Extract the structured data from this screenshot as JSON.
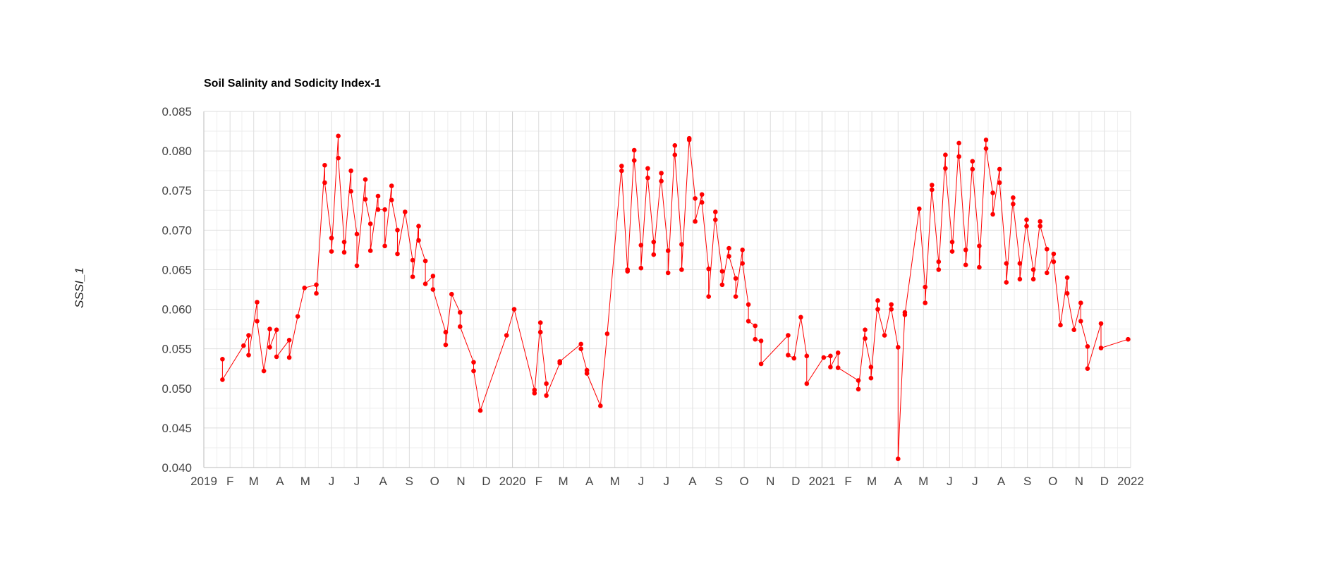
{
  "chart_data": {
    "type": "line",
    "title": "Soil Salinity and Sodicity Index-1",
    "xlabel": "",
    "ylabel": "SSSI_1",
    "ylim": [
      0.04,
      0.085
    ],
    "xlim": [
      "2019-01-01",
      "2022-01-01"
    ],
    "y_ticks": [
      "0.040",
      "0.045",
      "0.050",
      "0.055",
      "0.060",
      "0.065",
      "0.070",
      "0.075",
      "0.080",
      "0.085"
    ],
    "x_ticks": [
      {
        "date": "2019-01-01",
        "label": "2019",
        "year": true
      },
      {
        "date": "2019-02-01",
        "label": "F"
      },
      {
        "date": "2019-03-01",
        "label": "M"
      },
      {
        "date": "2019-04-01",
        "label": "A"
      },
      {
        "date": "2019-05-01",
        "label": "M"
      },
      {
        "date": "2019-06-01",
        "label": "J"
      },
      {
        "date": "2019-07-01",
        "label": "J"
      },
      {
        "date": "2019-08-01",
        "label": "A"
      },
      {
        "date": "2019-09-01",
        "label": "S"
      },
      {
        "date": "2019-10-01",
        "label": "O"
      },
      {
        "date": "2019-11-01",
        "label": "N"
      },
      {
        "date": "2019-12-01",
        "label": "D"
      },
      {
        "date": "2020-01-01",
        "label": "2020",
        "year": true
      },
      {
        "date": "2020-02-01",
        "label": "F"
      },
      {
        "date": "2020-03-01",
        "label": "M"
      },
      {
        "date": "2020-04-01",
        "label": "A"
      },
      {
        "date": "2020-05-01",
        "label": "M"
      },
      {
        "date": "2020-06-01",
        "label": "J"
      },
      {
        "date": "2020-07-01",
        "label": "J"
      },
      {
        "date": "2020-08-01",
        "label": "A"
      },
      {
        "date": "2020-09-01",
        "label": "S"
      },
      {
        "date": "2020-10-01",
        "label": "O"
      },
      {
        "date": "2020-11-01",
        "label": "N"
      },
      {
        "date": "2020-12-01",
        "label": "D"
      },
      {
        "date": "2021-01-01",
        "label": "2021",
        "year": true
      },
      {
        "date": "2021-02-01",
        "label": "F"
      },
      {
        "date": "2021-03-01",
        "label": "M"
      },
      {
        "date": "2021-04-01",
        "label": "A"
      },
      {
        "date": "2021-05-01",
        "label": "M"
      },
      {
        "date": "2021-06-01",
        "label": "J"
      },
      {
        "date": "2021-07-01",
        "label": "J"
      },
      {
        "date": "2021-08-01",
        "label": "A"
      },
      {
        "date": "2021-09-01",
        "label": "S"
      },
      {
        "date": "2021-10-01",
        "label": "O"
      },
      {
        "date": "2021-11-01",
        "label": "N"
      },
      {
        "date": "2021-12-01",
        "label": "D"
      },
      {
        "date": "2022-01-01",
        "label": "2022",
        "year": true
      }
    ],
    "grid": true,
    "legend": "none",
    "colors": {
      "series": "#ff0000",
      "grid": "#dddddd",
      "minor_grid": "#eeeeee",
      "year_grid": "#cccccc"
    },
    "series": [
      {
        "points": [
          [
            "2019-01-23",
            0.0537
          ],
          [
            "2019-01-23",
            0.0511
          ],
          [
            "2019-02-17",
            0.0554
          ],
          [
            "2019-02-23",
            0.0567
          ],
          [
            "2019-02-23",
            0.0542
          ],
          [
            "2019-03-05",
            0.0609
          ],
          [
            "2019-03-05",
            0.0585
          ],
          [
            "2019-03-13",
            0.0522
          ],
          [
            "2019-03-20",
            0.0575
          ],
          [
            "2019-03-20",
            0.0552
          ],
          [
            "2019-03-28",
            0.0574
          ],
          [
            "2019-03-28",
            0.054
          ],
          [
            "2019-04-12",
            0.0561
          ],
          [
            "2019-04-12",
            0.0539
          ],
          [
            "2019-04-22",
            0.0591
          ],
          [
            "2019-04-30",
            0.0627
          ],
          [
            "2019-05-14",
            0.0631
          ],
          [
            "2019-05-14",
            0.062
          ],
          [
            "2019-05-24",
            0.0782
          ],
          [
            "2019-05-24",
            0.076
          ],
          [
            "2019-06-01",
            0.069
          ],
          [
            "2019-06-01",
            0.0673
          ],
          [
            "2019-06-09",
            0.0819
          ],
          [
            "2019-06-09",
            0.0791
          ],
          [
            "2019-06-16",
            0.0685
          ],
          [
            "2019-06-16",
            0.0672
          ],
          [
            "2019-06-24",
            0.0775
          ],
          [
            "2019-06-24",
            0.0749
          ],
          [
            "2019-07-01",
            0.0695
          ],
          [
            "2019-07-01",
            0.0655
          ],
          [
            "2019-07-11",
            0.0764
          ],
          [
            "2019-07-11",
            0.0739
          ],
          [
            "2019-07-17",
            0.0708
          ],
          [
            "2019-07-17",
            0.0674
          ],
          [
            "2019-07-26",
            0.0743
          ],
          [
            "2019-07-26",
            0.0726
          ],
          [
            "2019-08-03",
            0.0726
          ],
          [
            "2019-08-03",
            0.068
          ],
          [
            "2019-08-11",
            0.0756
          ],
          [
            "2019-08-11",
            0.0738
          ],
          [
            "2019-08-18",
            0.07
          ],
          [
            "2019-08-18",
            0.067
          ],
          [
            "2019-08-27",
            0.0723
          ],
          [
            "2019-09-05",
            0.0662
          ],
          [
            "2019-09-05",
            0.0641
          ],
          [
            "2019-09-12",
            0.0705
          ],
          [
            "2019-09-12",
            0.0687
          ],
          [
            "2019-09-20",
            0.0661
          ],
          [
            "2019-09-20",
            0.0632
          ],
          [
            "2019-09-29",
            0.0642
          ],
          [
            "2019-09-29",
            0.0625
          ],
          [
            "2019-10-14",
            0.0571
          ],
          [
            "2019-10-14",
            0.0555
          ],
          [
            "2019-10-21",
            0.0619
          ],
          [
            "2019-10-31",
            0.0596
          ],
          [
            "2019-10-31",
            0.0578
          ],
          [
            "2019-11-16",
            0.0533
          ],
          [
            "2019-11-16",
            0.0522
          ],
          [
            "2019-11-24",
            0.0472
          ],
          [
            "2019-12-25",
            0.0567
          ],
          [
            "2020-01-03",
            0.06
          ],
          [
            "2020-01-27",
            0.0498
          ],
          [
            "2020-01-27",
            0.0494
          ],
          [
            "2020-02-03",
            0.0583
          ],
          [
            "2020-02-03",
            0.0571
          ],
          [
            "2020-02-10",
            0.0506
          ],
          [
            "2020-02-10",
            0.0491
          ],
          [
            "2020-02-26",
            0.0532
          ],
          [
            "2020-02-26",
            0.0534
          ],
          [
            "2020-03-22",
            0.0556
          ],
          [
            "2020-03-22",
            0.055
          ],
          [
            "2020-03-29",
            0.0523
          ],
          [
            "2020-03-29",
            0.0519
          ],
          [
            "2020-04-14",
            0.0478
          ],
          [
            "2020-04-22",
            0.0569
          ],
          [
            "2020-05-09",
            0.0781
          ],
          [
            "2020-05-09",
            0.0775
          ],
          [
            "2020-05-16",
            0.065
          ],
          [
            "2020-05-16",
            0.0648
          ],
          [
            "2020-05-24",
            0.0801
          ],
          [
            "2020-05-24",
            0.0788
          ],
          [
            "2020-06-01",
            0.0681
          ],
          [
            "2020-06-01",
            0.0652
          ],
          [
            "2020-06-09",
            0.0778
          ],
          [
            "2020-06-09",
            0.0766
          ],
          [
            "2020-06-16",
            0.0685
          ],
          [
            "2020-06-16",
            0.0669
          ],
          [
            "2020-06-25",
            0.0772
          ],
          [
            "2020-06-25",
            0.0762
          ],
          [
            "2020-07-03",
            0.0674
          ],
          [
            "2020-07-03",
            0.0646
          ],
          [
            "2020-07-11",
            0.0807
          ],
          [
            "2020-07-11",
            0.0795
          ],
          [
            "2020-07-19",
            0.0682
          ],
          [
            "2020-07-19",
            0.065
          ],
          [
            "2020-07-28",
            0.0816
          ],
          [
            "2020-07-28",
            0.0814
          ],
          [
            "2020-08-04",
            0.074
          ],
          [
            "2020-08-04",
            0.0711
          ],
          [
            "2020-08-12",
            0.0745
          ],
          [
            "2020-08-12",
            0.0735
          ],
          [
            "2020-08-20",
            0.0651
          ],
          [
            "2020-08-20",
            0.0616
          ],
          [
            "2020-08-28",
            0.0723
          ],
          [
            "2020-08-28",
            0.0713
          ],
          [
            "2020-09-05",
            0.0648
          ],
          [
            "2020-09-05",
            0.0631
          ],
          [
            "2020-09-13",
            0.0677
          ],
          [
            "2020-09-13",
            0.0667
          ],
          [
            "2020-09-21",
            0.0639
          ],
          [
            "2020-09-21",
            0.0616
          ],
          [
            "2020-09-29",
            0.0675
          ],
          [
            "2020-09-29",
            0.0658
          ],
          [
            "2020-10-06",
            0.0606
          ],
          [
            "2020-10-06",
            0.0585
          ],
          [
            "2020-10-14",
            0.0579
          ],
          [
            "2020-10-14",
            0.0562
          ],
          [
            "2020-10-21",
            0.056
          ],
          [
            "2020-10-21",
            0.0531
          ],
          [
            "2020-11-22",
            0.0567
          ],
          [
            "2020-11-22",
            0.0542
          ],
          [
            "2020-11-29",
            0.0538
          ],
          [
            "2020-12-07",
            0.059
          ],
          [
            "2020-12-14",
            0.0541
          ],
          [
            "2020-12-14",
            0.0506
          ],
          [
            "2021-01-03",
            0.0539
          ],
          [
            "2021-01-11",
            0.0541
          ],
          [
            "2021-01-11",
            0.0527
          ],
          [
            "2021-01-20",
            0.0545
          ],
          [
            "2021-01-20",
            0.0526
          ],
          [
            "2021-02-13",
            0.051
          ],
          [
            "2021-02-13",
            0.0499
          ],
          [
            "2021-02-21",
            0.0574
          ],
          [
            "2021-02-21",
            0.0563
          ],
          [
            "2021-02-28",
            0.0527
          ],
          [
            "2021-02-28",
            0.0513
          ],
          [
            "2021-03-08",
            0.0611
          ],
          [
            "2021-03-08",
            0.06
          ],
          [
            "2021-03-16",
            0.0567
          ],
          [
            "2021-03-24",
            0.0606
          ],
          [
            "2021-03-24",
            0.06
          ],
          [
            "2021-04-01",
            0.0552
          ],
          [
            "2021-04-01",
            0.0411
          ],
          [
            "2021-04-09",
            0.0596
          ],
          [
            "2021-04-09",
            0.0593
          ],
          [
            "2021-04-26",
            0.0727
          ],
          [
            "2021-05-03",
            0.0628
          ],
          [
            "2021-05-03",
            0.0608
          ],
          [
            "2021-05-11",
            0.0757
          ],
          [
            "2021-05-11",
            0.0751
          ],
          [
            "2021-05-19",
            0.066
          ],
          [
            "2021-05-19",
            0.065
          ],
          [
            "2021-05-27",
            0.0795
          ],
          [
            "2021-05-27",
            0.0778
          ],
          [
            "2021-06-04",
            0.0685
          ],
          [
            "2021-06-04",
            0.0673
          ],
          [
            "2021-06-12",
            0.081
          ],
          [
            "2021-06-12",
            0.0793
          ],
          [
            "2021-06-20",
            0.0675
          ],
          [
            "2021-06-20",
            0.0656
          ],
          [
            "2021-06-28",
            0.0787
          ],
          [
            "2021-06-28",
            0.0777
          ],
          [
            "2021-07-06",
            0.068
          ],
          [
            "2021-07-06",
            0.0653
          ],
          [
            "2021-07-14",
            0.0814
          ],
          [
            "2021-07-14",
            0.0803
          ],
          [
            "2021-07-22",
            0.0747
          ],
          [
            "2021-07-22",
            0.072
          ],
          [
            "2021-07-30",
            0.0777
          ],
          [
            "2021-07-30",
            0.076
          ],
          [
            "2021-08-07",
            0.0658
          ],
          [
            "2021-08-07",
            0.0634
          ],
          [
            "2021-08-15",
            0.0741
          ],
          [
            "2021-08-15",
            0.0733
          ],
          [
            "2021-08-23",
            0.0658
          ],
          [
            "2021-08-23",
            0.0638
          ],
          [
            "2021-08-31",
            0.0713
          ],
          [
            "2021-08-31",
            0.0705
          ],
          [
            "2021-09-08",
            0.065
          ],
          [
            "2021-09-08",
            0.0638
          ],
          [
            "2021-09-16",
            0.0711
          ],
          [
            "2021-09-16",
            0.0705
          ],
          [
            "2021-09-24",
            0.0676
          ],
          [
            "2021-09-24",
            0.0646
          ],
          [
            "2021-10-02",
            0.067
          ],
          [
            "2021-10-02",
            0.066
          ],
          [
            "2021-10-10",
            0.058
          ],
          [
            "2021-10-18",
            0.064
          ],
          [
            "2021-10-18",
            0.062
          ],
          [
            "2021-10-26",
            0.0574
          ],
          [
            "2021-11-03",
            0.0608
          ],
          [
            "2021-11-03",
            0.0585
          ],
          [
            "2021-11-11",
            0.0553
          ],
          [
            "2021-11-11",
            0.0525
          ],
          [
            "2021-11-27",
            0.0582
          ],
          [
            "2021-11-27",
            0.0551
          ],
          [
            "2021-12-29",
            0.0562
          ]
        ]
      }
    ]
  }
}
